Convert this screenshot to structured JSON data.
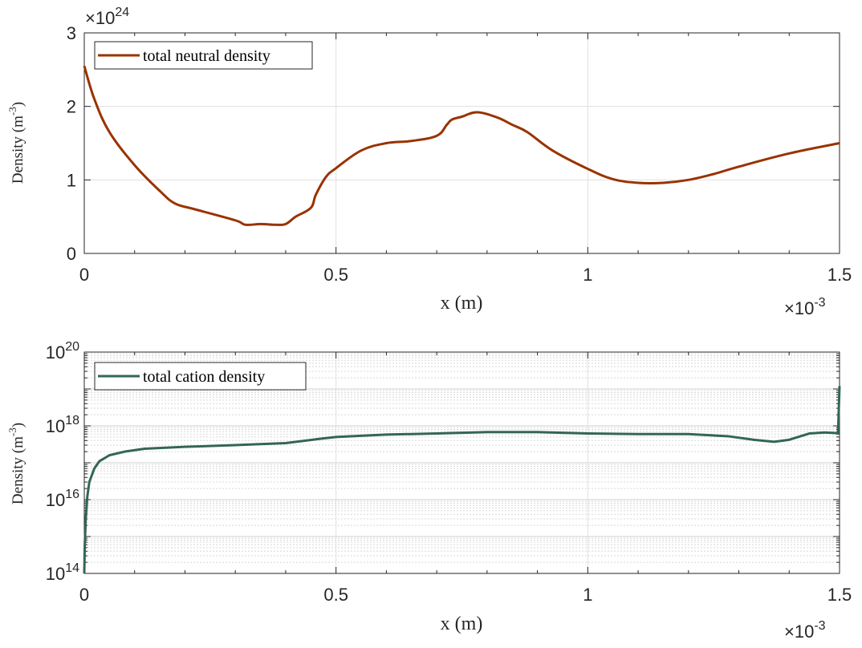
{
  "chart_data": [
    {
      "type": "line",
      "xlabel": "x (m)",
      "x_exponent_label": "×10",
      "x_exponent": "-3",
      "ylabel": "Density (m",
      "ylabel_unit_exp": "-3",
      "ylabel_close": ")",
      "y_exponent_label": "×10",
      "y_exponent": "24",
      "xlim": [
        0,
        1.5
      ],
      "ylim": [
        0,
        3
      ],
      "xticks": [
        "0",
        "0.5",
        "1",
        "1.5"
      ],
      "yticks": [
        "0",
        "1",
        "2",
        "3"
      ],
      "y_scale": "linear",
      "grid": true,
      "legend_position": "top-left",
      "series": [
        {
          "name": "total neutral density",
          "color": "#993300",
          "x": [
            0,
            0.02,
            0.05,
            0.1,
            0.15,
            0.18,
            0.22,
            0.3,
            0.32,
            0.35,
            0.38,
            0.4,
            0.42,
            0.45,
            0.46,
            0.48,
            0.5,
            0.55,
            0.6,
            0.65,
            0.7,
            0.72,
            0.73,
            0.75,
            0.78,
            0.82,
            0.85,
            0.88,
            0.93,
            1.0,
            1.05,
            1.1,
            1.15,
            1.2,
            1.25,
            1.3,
            1.4,
            1.5
          ],
          "y": [
            2.55,
            2.1,
            1.65,
            1.2,
            0.85,
            0.68,
            0.6,
            0.45,
            0.39,
            0.4,
            0.39,
            0.4,
            0.5,
            0.62,
            0.8,
            1.04,
            1.16,
            1.4,
            1.5,
            1.53,
            1.6,
            1.75,
            1.82,
            1.86,
            1.92,
            1.85,
            1.75,
            1.65,
            1.4,
            1.15,
            1.01,
            0.96,
            0.96,
            1.0,
            1.08,
            1.18,
            1.36,
            1.5
          ]
        }
      ]
    },
    {
      "type": "line",
      "xlabel": "x (m)",
      "x_exponent_label": "×10",
      "x_exponent": "-3",
      "ylabel": "Density (m",
      "ylabel_unit_exp": "-3",
      "ylabel_close": ")",
      "xlim": [
        0,
        1.5
      ],
      "ylim": [
        100000000000000.0,
        1e+20
      ],
      "xticks": [
        "0",
        "0.5",
        "1",
        "1.5"
      ],
      "yticks": [
        {
          "base": "10",
          "exp": "14",
          "value": 100000000000000.0
        },
        {
          "base": "10",
          "exp": "16",
          "value": 1e+16
        },
        {
          "base": "10",
          "exp": "18",
          "value": 1e+18
        },
        {
          "base": "10",
          "exp": "20",
          "value": 1e+20
        }
      ],
      "y_scale": "log",
      "grid": true,
      "legend_position": "top-left",
      "series": [
        {
          "name": "total cation density",
          "color": "#336655",
          "x": [
            0.0,
            0.001,
            0.003,
            0.006,
            0.01,
            0.02,
            0.03,
            0.05,
            0.08,
            0.12,
            0.2,
            0.3,
            0.4,
            0.47,
            0.5,
            0.6,
            0.7,
            0.8,
            0.9,
            1.0,
            1.1,
            1.2,
            1.28,
            1.33,
            1.37,
            1.4,
            1.44,
            1.47,
            1.49,
            1.497,
            1.5
          ],
          "y": [
            100000000000000.0,
            600000000000000.0,
            3000000000000000.0,
            1.2e+16,
            3e+16,
            7e+16,
            1.1e+17,
            1.6e+17,
            2e+17,
            2.4e+17,
            2.7e+17,
            3e+17,
            3.4e+17,
            4.5e+17,
            5e+17,
            5.8e+17,
            6.2e+17,
            6.8e+17,
            6.8e+17,
            6.2e+17,
            6e+17,
            6e+17,
            5.2e+17,
            4.2e+17,
            3.7e+17,
            4.2e+17,
            6.2e+17,
            6.6e+17,
            6.4e+17,
            6.2e+17,
            1.2e+19
          ]
        }
      ]
    }
  ]
}
